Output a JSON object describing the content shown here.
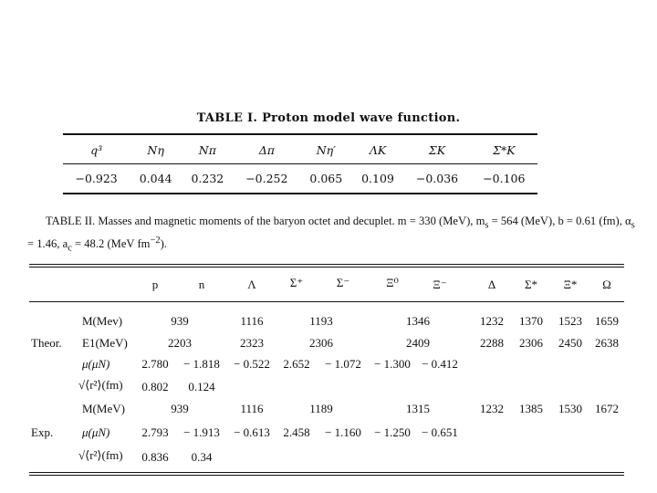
{
  "table1": {
    "title": "TABLE I.  Proton model wave function.",
    "headers": [
      "q³",
      "Nη",
      "Nπ",
      "Δπ",
      "Nη′",
      "ΛK",
      "ΣK",
      "Σ*K"
    ],
    "values": [
      "−0.923",
      "0.044",
      "0.232",
      "−0.252",
      "0.065",
      "0.109",
      "−0.036",
      "−0.106"
    ]
  },
  "table2": {
    "caption_line1": "TABLE II.  Masses and magnetic moments of the baryon octet and decuplet.  m = 330 (MeV),  m",
    "caption_line1_sub": "s",
    "caption_line1_b": " = 564 (MeV),  b = 0.61 (fm),  α",
    "caption_line1_sub2": "s",
    "caption_line2": "= 1.46,  a",
    "caption_line2_sub": "c",
    "caption_line2_b": " = 48.2 (MeV fm",
    "caption_line2_sup": "−2",
    "caption_line2_c": ").",
    "columns": [
      "p",
      "n",
      "Λ",
      "Σ⁺",
      "Σ⁻",
      "Ξ⁰",
      "Ξ⁻",
      "Δ",
      "Σ*",
      "Ξ*",
      "Ω"
    ],
    "groups": [
      "Theor.",
      "Exp."
    ],
    "row_labels": [
      "M(Mev)",
      "E1(MeV)",
      "μ(μN)",
      "√⟨r²⟩(fm)",
      "M(MeV)",
      "μ(μN)",
      "√⟨r²⟩(fm)"
    ],
    "theor_mass": [
      "939",
      "1116",
      "1193",
      "1346",
      "1232",
      "1370",
      "1523",
      "1659"
    ],
    "theor_e1": [
      "2203",
      "2323",
      "2306",
      "2409",
      "2288",
      "2306",
      "2450",
      "2638"
    ],
    "theor_mu": [
      "2.780",
      "− 1.818",
      "− 0.522",
      "2.652",
      "− 1.072",
      "− 1.300",
      "− 0.412"
    ],
    "theor_r": [
      "0.802",
      "0.124"
    ],
    "exp_mass": [
      "939",
      "1116",
      "1189",
      "1315",
      "1232",
      "1385",
      "1530",
      "1672"
    ],
    "exp_mu": [
      "2.793",
      "− 1.913",
      "− 0.613",
      "2.458",
      "− 1.160",
      "− 1.250",
      "− 0.651"
    ],
    "exp_r": [
      "0.836",
      "0.34"
    ]
  }
}
